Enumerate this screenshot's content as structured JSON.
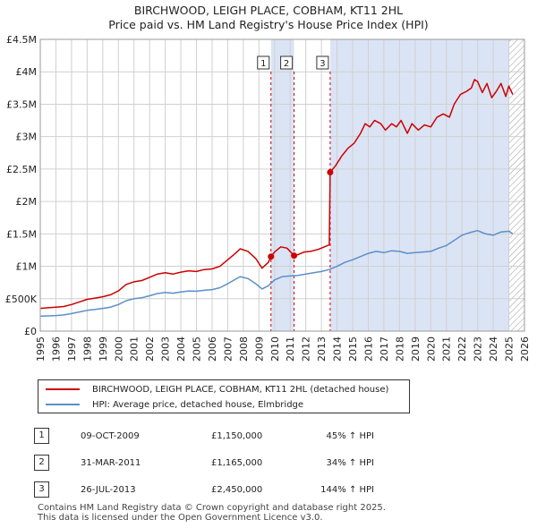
{
  "chart_data": {
    "type": "line",
    "title": "BIRCHWOOD, LEIGH PLACE, COBHAM, KT11 2HL",
    "subtitle": "Price paid vs. HM Land Registry's House Price Index (HPI)",
    "xlabel": "",
    "ylabel": "",
    "xlim": [
      1995,
      2026
    ],
    "ylim": [
      0,
      4500000
    ],
    "x_ticks": [
      "1995",
      "1996",
      "1997",
      "1998",
      "1999",
      "2000",
      "2001",
      "2002",
      "2003",
      "2004",
      "2005",
      "2006",
      "2007",
      "2008",
      "2009",
      "2010",
      "2011",
      "2012",
      "2013",
      "2014",
      "2015",
      "2016",
      "2017",
      "2018",
      "2019",
      "2020",
      "2021",
      "2022",
      "2023",
      "2024",
      "2025",
      "2026"
    ],
    "y_ticks": [
      {
        "value": 0,
        "label": "£0"
      },
      {
        "value": 500000,
        "label": "£500K"
      },
      {
        "value": 1000000,
        "label": "£1M"
      },
      {
        "value": 1500000,
        "label": "£1.5M"
      },
      {
        "value": 2000000,
        "label": "£2M"
      },
      {
        "value": 2500000,
        "label": "£2.5M"
      },
      {
        "value": 3000000,
        "label": "£3M"
      },
      {
        "value": 3500000,
        "label": "£3.5M"
      },
      {
        "value": 4000000,
        "label": "£4M"
      },
      {
        "value": 4500000,
        "label": "£4.5M"
      }
    ],
    "colors": {
      "property": "#cc0000",
      "hpi": "#5b8fc9",
      "shade": "#dbe4f5",
      "grid": "#d0d0d0",
      "plot_bg": "#ffffff",
      "dash": "#cc0000",
      "hatch": "#999999"
    },
    "series": [
      {
        "name": "BIRCHWOOD, LEIGH PLACE, COBHAM, KT11 2HL (detached house)",
        "color": "#cc0000",
        "points": [
          [
            1995.0,
            350000
          ],
          [
            1995.5,
            360000
          ],
          [
            1996.0,
            370000
          ],
          [
            1996.5,
            380000
          ],
          [
            1997.0,
            410000
          ],
          [
            1997.5,
            450000
          ],
          [
            1998.0,
            490000
          ],
          [
            1998.5,
            510000
          ],
          [
            1999.0,
            530000
          ],
          [
            1999.5,
            560000
          ],
          [
            2000.0,
            620000
          ],
          [
            2000.5,
            720000
          ],
          [
            2001.0,
            760000
          ],
          [
            2001.5,
            780000
          ],
          [
            2002.0,
            830000
          ],
          [
            2002.5,
            880000
          ],
          [
            2003.0,
            900000
          ],
          [
            2003.5,
            880000
          ],
          [
            2004.0,
            910000
          ],
          [
            2004.5,
            930000
          ],
          [
            2005.0,
            920000
          ],
          [
            2005.5,
            950000
          ],
          [
            2006.0,
            960000
          ],
          [
            2006.5,
            1000000
          ],
          [
            2007.0,
            1100000
          ],
          [
            2007.5,
            1200000
          ],
          [
            2007.8,
            1270000
          ],
          [
            2008.3,
            1230000
          ],
          [
            2008.8,
            1120000
          ],
          [
            2009.2,
            970000
          ],
          [
            2009.6,
            1060000
          ],
          [
            2009.77,
            1150000
          ],
          [
            2010.0,
            1220000
          ],
          [
            2010.4,
            1300000
          ],
          [
            2010.8,
            1280000
          ],
          [
            2011.25,
            1165000
          ],
          [
            2011.5,
            1180000
          ],
          [
            2011.9,
            1220000
          ],
          [
            2012.3,
            1230000
          ],
          [
            2012.8,
            1260000
          ],
          [
            2013.2,
            1300000
          ],
          [
            2013.5,
            1330000
          ],
          [
            2013.56,
            2450000
          ],
          [
            2013.9,
            2550000
          ],
          [
            2014.3,
            2700000
          ],
          [
            2014.7,
            2820000
          ],
          [
            2015.1,
            2900000
          ],
          [
            2015.5,
            3050000
          ],
          [
            2015.8,
            3200000
          ],
          [
            2016.1,
            3150000
          ],
          [
            2016.4,
            3250000
          ],
          [
            2016.8,
            3200000
          ],
          [
            2017.1,
            3100000
          ],
          [
            2017.5,
            3200000
          ],
          [
            2017.8,
            3150000
          ],
          [
            2018.1,
            3250000
          ],
          [
            2018.5,
            3050000
          ],
          [
            2018.8,
            3200000
          ],
          [
            2019.2,
            3100000
          ],
          [
            2019.6,
            3180000
          ],
          [
            2020.0,
            3150000
          ],
          [
            2020.4,
            3300000
          ],
          [
            2020.8,
            3350000
          ],
          [
            2021.2,
            3300000
          ],
          [
            2021.5,
            3500000
          ],
          [
            2021.9,
            3650000
          ],
          [
            2022.3,
            3700000
          ],
          [
            2022.6,
            3750000
          ],
          [
            2022.8,
            3880000
          ],
          [
            2023.0,
            3850000
          ],
          [
            2023.3,
            3680000
          ],
          [
            2023.6,
            3820000
          ],
          [
            2023.9,
            3600000
          ],
          [
            2024.2,
            3700000
          ],
          [
            2024.5,
            3820000
          ],
          [
            2024.8,
            3620000
          ],
          [
            2025.0,
            3780000
          ],
          [
            2025.25,
            3650000
          ]
        ]
      },
      {
        "name": "HPI: Average price, detached house, Elmbridge",
        "color": "#5b8fc9",
        "points": [
          [
            1995.0,
            230000
          ],
          [
            1995.5,
            235000
          ],
          [
            1996.0,
            240000
          ],
          [
            1996.5,
            250000
          ],
          [
            1997.0,
            270000
          ],
          [
            1997.5,
            295000
          ],
          [
            1998.0,
            320000
          ],
          [
            1998.5,
            335000
          ],
          [
            1999.0,
            350000
          ],
          [
            1999.5,
            370000
          ],
          [
            2000.0,
            410000
          ],
          [
            2000.5,
            470000
          ],
          [
            2001.0,
            500000
          ],
          [
            2001.5,
            515000
          ],
          [
            2002.0,
            545000
          ],
          [
            2002.5,
            580000
          ],
          [
            2003.0,
            595000
          ],
          [
            2003.5,
            585000
          ],
          [
            2004.0,
            605000
          ],
          [
            2004.5,
            620000
          ],
          [
            2005.0,
            615000
          ],
          [
            2005.5,
            630000
          ],
          [
            2006.0,
            640000
          ],
          [
            2006.5,
            670000
          ],
          [
            2007.0,
            730000
          ],
          [
            2007.5,
            800000
          ],
          [
            2007.8,
            840000
          ],
          [
            2008.3,
            810000
          ],
          [
            2008.8,
            730000
          ],
          [
            2009.2,
            650000
          ],
          [
            2009.6,
            700000
          ],
          [
            2010.0,
            790000
          ],
          [
            2010.5,
            840000
          ],
          [
            2011.0,
            850000
          ],
          [
            2011.5,
            860000
          ],
          [
            2012.0,
            880000
          ],
          [
            2012.5,
            900000
          ],
          [
            2013.0,
            920000
          ],
          [
            2013.5,
            950000
          ],
          [
            2014.0,
            1000000
          ],
          [
            2014.5,
            1060000
          ],
          [
            2015.0,
            1100000
          ],
          [
            2015.5,
            1150000
          ],
          [
            2016.0,
            1200000
          ],
          [
            2016.5,
            1230000
          ],
          [
            2017.0,
            1210000
          ],
          [
            2017.5,
            1240000
          ],
          [
            2018.0,
            1230000
          ],
          [
            2018.5,
            1200000
          ],
          [
            2019.0,
            1210000
          ],
          [
            2019.5,
            1220000
          ],
          [
            2020.0,
            1230000
          ],
          [
            2020.5,
            1280000
          ],
          [
            2021.0,
            1320000
          ],
          [
            2021.5,
            1400000
          ],
          [
            2022.0,
            1480000
          ],
          [
            2022.5,
            1520000
          ],
          [
            2023.0,
            1550000
          ],
          [
            2023.5,
            1500000
          ],
          [
            2024.0,
            1480000
          ],
          [
            2024.5,
            1530000
          ],
          [
            2025.0,
            1540000
          ],
          [
            2025.25,
            1500000
          ]
        ]
      }
    ],
    "sales": [
      {
        "marker": "1",
        "x": 2009.77,
        "value": 1150000
      },
      {
        "marker": "2",
        "x": 2011.25,
        "value": 1165000
      },
      {
        "marker": "3",
        "x": 2013.56,
        "value": 2450000
      }
    ],
    "shaded_range": [
      2009.77,
      2011.25
    ],
    "hatched_from": 2025.0
  },
  "legend": {
    "property_label": "BIRCHWOOD, LEIGH PLACE, COBHAM, KT11 2HL (detached house)",
    "hpi_label": "HPI: Average price, detached house, Elmbridge"
  },
  "transactions": [
    {
      "marker": "1",
      "date": "09-OCT-2009",
      "price": "£1,150,000",
      "hpi": "45% ↑ HPI"
    },
    {
      "marker": "2",
      "date": "31-MAR-2011",
      "price": "£1,165,000",
      "hpi": "34% ↑ HPI"
    },
    {
      "marker": "3",
      "date": "26-JUL-2013",
      "price": "£2,450,000",
      "hpi": "144% ↑ HPI"
    }
  ],
  "footer": {
    "line1": "Contains HM Land Registry data © Crown copyright and database right 2025.",
    "line2": "This data is licensed under the Open Government Licence v3.0."
  }
}
